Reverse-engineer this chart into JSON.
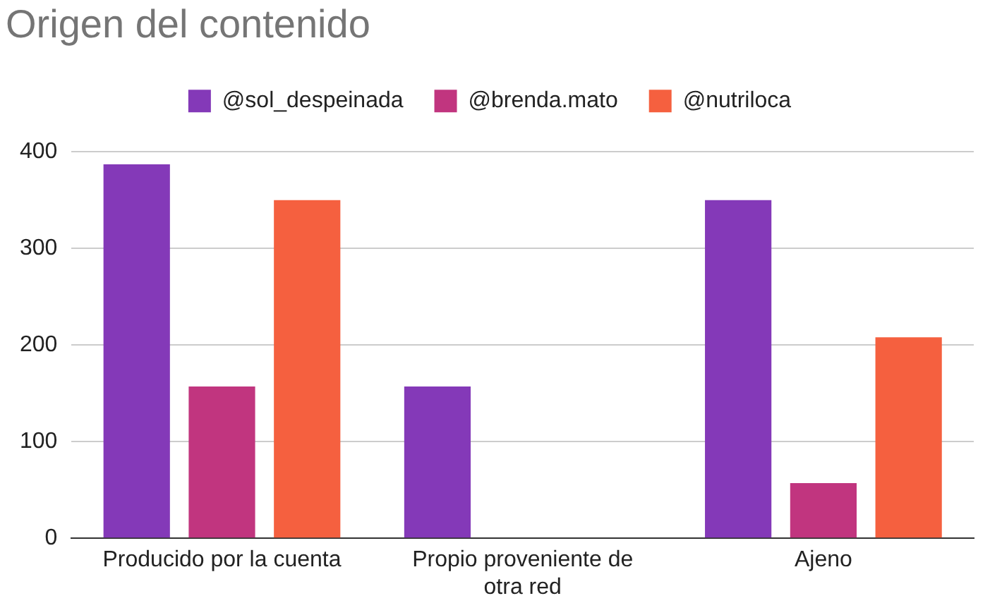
{
  "chart_data": {
    "type": "bar",
    "title": "Origen del contenido",
    "categories": [
      "Producido por la cuenta",
      "Propio proveniente de otra red",
      "Ajeno"
    ],
    "series": [
      {
        "name": "@sol_despeinada",
        "color": "#8439b8",
        "values": [
          387,
          157,
          350
        ]
      },
      {
        "name": "@brenda.mato",
        "color": "#c1357f",
        "values": [
          157,
          0,
          57
        ]
      },
      {
        "name": "@nutriloca",
        "color": "#f5603f",
        "values": [
          350,
          0,
          208
        ]
      }
    ],
    "ylim": [
      0,
      400
    ],
    "yticks": [
      0,
      100,
      200,
      300,
      400
    ],
    "grid": "y",
    "legend": "top"
  }
}
